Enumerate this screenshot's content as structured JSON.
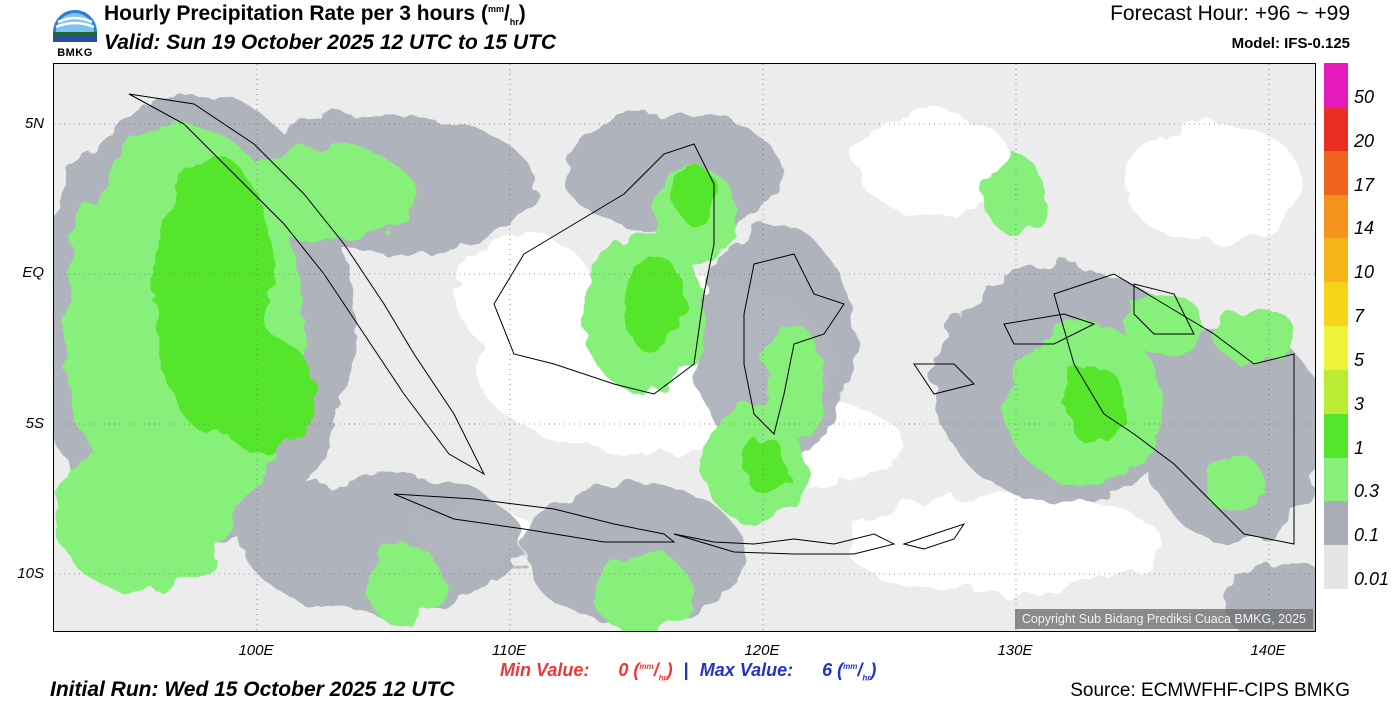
{
  "header": {
    "logo_text": "BMKG",
    "title": "Hourly Precipitation Rate per 3 hours",
    "title_unit_top": "mm",
    "title_unit_bottom": "hr",
    "valid": "Valid: Sun 19 October 2025 12 UTC to 15 UTC",
    "forecast_hour": "Forecast Hour: +96 ~ +99",
    "model": "Model: IFS-0.125"
  },
  "map": {
    "lat_labels": [
      "5N",
      "EQ",
      "5S",
      "10S"
    ],
    "lon_labels": [
      "100E",
      "110E",
      "120E",
      "130E",
      "140E"
    ],
    "copyright": "Copyright Sub Bidang Prediksi Cuaca BMKG, 2025"
  },
  "legend": {
    "values": [
      "50",
      "20",
      "17",
      "14",
      "10",
      "7",
      "5",
      "3",
      "1",
      "0.3",
      "0.1",
      "0.01"
    ],
    "colors": [
      "#e619bc",
      "#ea2e22",
      "#ef6320",
      "#f5921e",
      "#f5b418",
      "#f5d419",
      "#eef23a",
      "#b9ec32",
      "#55e52b",
      "#86f07a",
      "#a9adb6",
      "#e5e5e5"
    ]
  },
  "stats": {
    "min_label": "Min Value:",
    "min_value": "0",
    "max_label": "Max Value:",
    "max_value": "6",
    "unit_top": "mm",
    "unit_bottom": "hr",
    "separator": "|"
  },
  "footer": {
    "initial_run": "Initial Run: Wed 15 October 2025 12 UTC",
    "source": "Source: ECMWFHF-CIPS BMKG"
  },
  "colors": {
    "rain_light": "#86f07a",
    "rain_moderate": "#55e52b",
    "trace": "#a9adb6",
    "very_light": "#e5e5e5"
  }
}
